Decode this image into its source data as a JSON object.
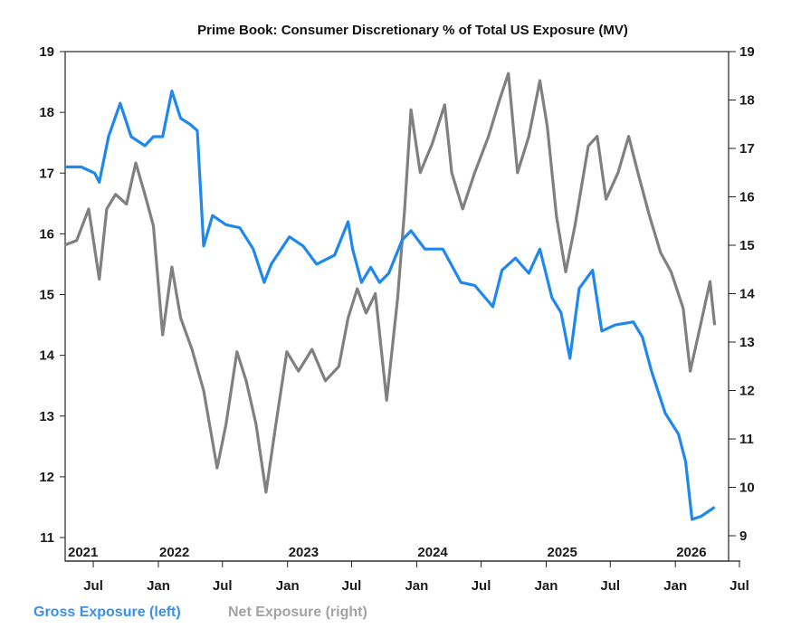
{
  "chart_data": {
    "type": "line",
    "title": "Prime Book: Consumer Discretionary % of Total US Exposure (MV)",
    "colors": {
      "gross": "#1f88ee",
      "net": "#808080"
    },
    "y_left": {
      "lim": [
        11,
        19
      ],
      "ticks": [
        11,
        12,
        13,
        14,
        15,
        16,
        17,
        18,
        19
      ]
    },
    "y_right": {
      "lim": [
        9,
        19
      ],
      "ticks": [
        9,
        10,
        11,
        12,
        13,
        14,
        15,
        16,
        17,
        18,
        19
      ]
    },
    "x_ticks": [
      {
        "date": "2021-07-01",
        "label": "Jul"
      },
      {
        "date": "2022-01-01",
        "label": "Jan"
      },
      {
        "date": "2022-07-01",
        "label": "Jul"
      },
      {
        "date": "2023-01-01",
        "label": "Jan"
      },
      {
        "date": "2023-07-01",
        "label": "Jul"
      },
      {
        "date": "2024-01-01",
        "label": "Jan"
      },
      {
        "date": "2024-07-01",
        "label": "Jul"
      },
      {
        "date": "2025-01-01",
        "label": "Jan"
      },
      {
        "date": "2025-07-01",
        "label": "Jul"
      },
      {
        "date": "2026-01-01",
        "label": "Jan"
      },
      {
        "date": "2026-07-01",
        "label": "Jul"
      }
    ],
    "year_labels": [
      {
        "date": "2021-04-10",
        "label": "2021"
      },
      {
        "date": "2022-01-01",
        "label": "2022"
      },
      {
        "date": "2023-01-01",
        "label": "2023"
      },
      {
        "date": "2024-01-01",
        "label": "2024"
      },
      {
        "date": "2025-01-01",
        "label": "2025"
      },
      {
        "date": "2026-01-01",
        "label": "2026"
      }
    ],
    "grid": false,
    "legend_position": "bottom-left",
    "series": [
      {
        "name": "Gross Exposure (left)",
        "axis": "left",
        "points": [
          [
            "2021-04-10",
            17.1
          ],
          [
            "2021-05-28",
            17.1
          ],
          [
            "2021-07-05",
            17.0
          ],
          [
            "2021-07-18",
            16.85
          ],
          [
            "2021-08-13",
            17.6
          ],
          [
            "2021-09-15",
            18.15
          ],
          [
            "2021-10-16",
            17.6
          ],
          [
            "2021-11-24",
            17.45
          ],
          [
            "2021-12-18",
            17.6
          ],
          [
            "2022-01-13",
            17.6
          ],
          [
            "2022-02-08",
            18.35
          ],
          [
            "2022-03-05",
            17.9
          ],
          [
            "2022-04-01",
            17.8
          ],
          [
            "2022-04-21",
            17.7
          ],
          [
            "2022-05-09",
            15.8
          ],
          [
            "2022-06-03",
            16.3
          ],
          [
            "2022-07-11",
            16.15
          ],
          [
            "2022-08-19",
            16.1
          ],
          [
            "2022-09-26",
            15.75
          ],
          [
            "2022-10-27",
            15.2
          ],
          [
            "2022-11-16",
            15.5
          ],
          [
            "2023-01-06",
            15.95
          ],
          [
            "2023-02-14",
            15.8
          ],
          [
            "2023-03-24",
            15.5
          ],
          [
            "2023-05-14",
            15.65
          ],
          [
            "2023-06-21",
            16.2
          ],
          [
            "2023-07-04",
            15.75
          ],
          [
            "2023-07-29",
            15.2
          ],
          [
            "2023-08-24",
            15.45
          ],
          [
            "2023-09-18",
            15.2
          ],
          [
            "2023-10-14",
            15.35
          ],
          [
            "2023-11-21",
            15.9
          ],
          [
            "2023-12-16",
            16.05
          ],
          [
            "2024-01-24",
            15.75
          ],
          [
            "2024-03-15",
            15.75
          ],
          [
            "2024-05-05",
            15.2
          ],
          [
            "2024-06-13",
            15.15
          ],
          [
            "2024-08-03",
            14.8
          ],
          [
            "2024-08-29",
            15.4
          ],
          [
            "2024-10-06",
            15.6
          ],
          [
            "2024-11-13",
            15.35
          ],
          [
            "2024-12-14",
            15.75
          ],
          [
            "2025-01-17",
            14.95
          ],
          [
            "2025-02-12",
            14.7
          ],
          [
            "2025-03-09",
            13.95
          ],
          [
            "2025-04-04",
            15.1
          ],
          [
            "2025-05-12",
            15.4
          ],
          [
            "2025-06-07",
            14.4
          ],
          [
            "2025-07-15",
            14.5
          ],
          [
            "2025-09-04",
            14.55
          ],
          [
            "2025-09-30",
            14.3
          ],
          [
            "2025-10-25",
            13.75
          ],
          [
            "2025-12-03",
            13.05
          ],
          [
            "2026-01-10",
            12.7
          ],
          [
            "2026-01-30",
            12.25
          ],
          [
            "2026-02-17",
            11.3
          ],
          [
            "2026-03-15",
            11.35
          ],
          [
            "2026-04-22",
            11.5
          ]
        ]
      },
      {
        "name": "Net Exposure (right)",
        "axis": "right",
        "points": [
          [
            "2021-04-10",
            15.0
          ],
          [
            "2021-05-15",
            15.1
          ],
          [
            "2021-06-18",
            15.75
          ],
          [
            "2021-07-18",
            14.3
          ],
          [
            "2021-08-08",
            15.75
          ],
          [
            "2021-09-02",
            16.05
          ],
          [
            "2021-10-03",
            15.85
          ],
          [
            "2021-10-29",
            16.7
          ],
          [
            "2021-11-24",
            16.05
          ],
          [
            "2021-12-18",
            15.4
          ],
          [
            "2022-01-13",
            13.15
          ],
          [
            "2022-02-08",
            14.55
          ],
          [
            "2022-03-05",
            13.5
          ],
          [
            "2022-04-06",
            12.85
          ],
          [
            "2022-05-09",
            12.0
          ],
          [
            "2022-06-16",
            10.4
          ],
          [
            "2022-07-11",
            11.3
          ],
          [
            "2022-08-11",
            12.8
          ],
          [
            "2022-09-06",
            12.2
          ],
          [
            "2022-10-04",
            11.3
          ],
          [
            "2022-11-01",
            9.9
          ],
          [
            "2022-11-29",
            11.3
          ],
          [
            "2022-12-30",
            12.8
          ],
          [
            "2023-02-01",
            12.4
          ],
          [
            "2023-03-11",
            12.85
          ],
          [
            "2023-04-18",
            12.2
          ],
          [
            "2023-05-26",
            12.5
          ],
          [
            "2023-06-21",
            13.5
          ],
          [
            "2023-07-17",
            14.1
          ],
          [
            "2023-08-11",
            13.6
          ],
          [
            "2023-09-06",
            14.0
          ],
          [
            "2023-10-08",
            11.8
          ],
          [
            "2023-11-08",
            13.9
          ],
          [
            "2023-11-28",
            15.75
          ],
          [
            "2023-12-16",
            17.8
          ],
          [
            "2024-01-11",
            16.5
          ],
          [
            "2024-02-14",
            17.1
          ],
          [
            "2024-03-20",
            17.9
          ],
          [
            "2024-04-09",
            16.5
          ],
          [
            "2024-05-10",
            15.75
          ],
          [
            "2024-06-13",
            16.5
          ],
          [
            "2024-07-22",
            17.25
          ],
          [
            "2024-08-22",
            18.0
          ],
          [
            "2024-09-16",
            18.55
          ],
          [
            "2024-10-12",
            16.5
          ],
          [
            "2024-11-13",
            17.25
          ],
          [
            "2024-12-14",
            18.4
          ],
          [
            "2025-01-04",
            17.45
          ],
          [
            "2025-01-30",
            15.6
          ],
          [
            "2025-02-25",
            14.45
          ],
          [
            "2025-03-23",
            15.4
          ],
          [
            "2025-04-30",
            17.05
          ],
          [
            "2025-05-25",
            17.25
          ],
          [
            "2025-06-19",
            15.95
          ],
          [
            "2025-07-23",
            16.5
          ],
          [
            "2025-08-22",
            17.25
          ],
          [
            "2025-09-17",
            16.5
          ],
          [
            "2025-10-20",
            15.6
          ],
          [
            "2025-11-20",
            14.85
          ],
          [
            "2025-12-20",
            14.45
          ],
          [
            "2026-01-23",
            13.7
          ],
          [
            "2026-02-12",
            12.4
          ],
          [
            "2026-03-07",
            13.15
          ],
          [
            "2026-04-09",
            14.25
          ],
          [
            "2026-04-22",
            13.35
          ]
        ]
      }
    ]
  },
  "legend": {
    "gross": "Gross Exposure (left)",
    "net": "Net Exposure (right)"
  }
}
